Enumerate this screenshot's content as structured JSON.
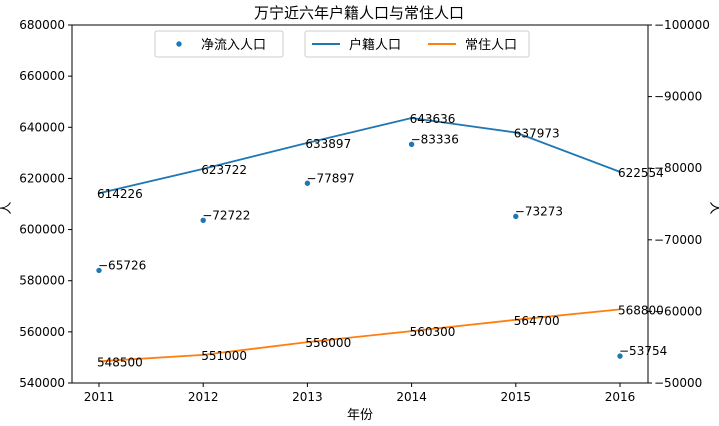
{
  "chart_data": {
    "type": "line",
    "title": "万宁近六年户籍人口与常住人口",
    "xlabel": "年份",
    "ylabel": "人",
    "ylabel_right": "人",
    "x": [
      2011,
      2012,
      2013,
      2014,
      2015,
      2016
    ],
    "x_tick_labels": [
      "2011",
      "2012",
      "2013",
      "2014",
      "2015",
      "2016"
    ],
    "ylim": [
      540000,
      680000
    ],
    "y_ticks": [
      540000,
      560000,
      580000,
      600000,
      620000,
      640000,
      660000,
      680000
    ],
    "y_tick_labels": [
      "540000",
      "560000",
      "580000",
      "600000",
      "620000",
      "640000",
      "660000",
      "680000"
    ],
    "ylim_right": [
      -50000,
      -100000
    ],
    "y_ticks_right": [
      -50000,
      -60000,
      -70000,
      -80000,
      -90000,
      -100000
    ],
    "y_tick_labels_right": [
      "−50000",
      "−60000",
      "−70000",
      "−80000",
      "−90000",
      "−100000"
    ],
    "series": [
      {
        "name": "户籍人口",
        "kind": "line",
        "axis": "left",
        "color": "#1f77b4",
        "values": [
          614226,
          623722,
          633897,
          643636,
          637973,
          622554
        ],
        "labels": [
          "614226",
          "623722",
          "633897",
          "643636",
          "637973",
          "622554"
        ]
      },
      {
        "name": "常住人口",
        "kind": "line",
        "axis": "left",
        "color": "#ff7f0e",
        "values": [
          548500,
          551000,
          556000,
          560300,
          564700,
          568800
        ],
        "labels": [
          "548500",
          "551000",
          "556000",
          "560300",
          "564700",
          "568800"
        ]
      },
      {
        "name": "净流入人口",
        "kind": "scatter",
        "axis": "right",
        "color": "#1f77b4",
        "values": [
          -65726,
          -72722,
          -77897,
          -83336,
          -73273,
          -53754
        ],
        "labels": [
          "−65726",
          "−72722",
          "−77897",
          "−83336",
          "−73273",
          "−53754"
        ]
      }
    ],
    "legend": {
      "left_group": [
        "净流入人口"
      ],
      "right_group": [
        "户籍人口",
        "常住人口"
      ],
      "placement": "top-center"
    },
    "grid": false
  }
}
